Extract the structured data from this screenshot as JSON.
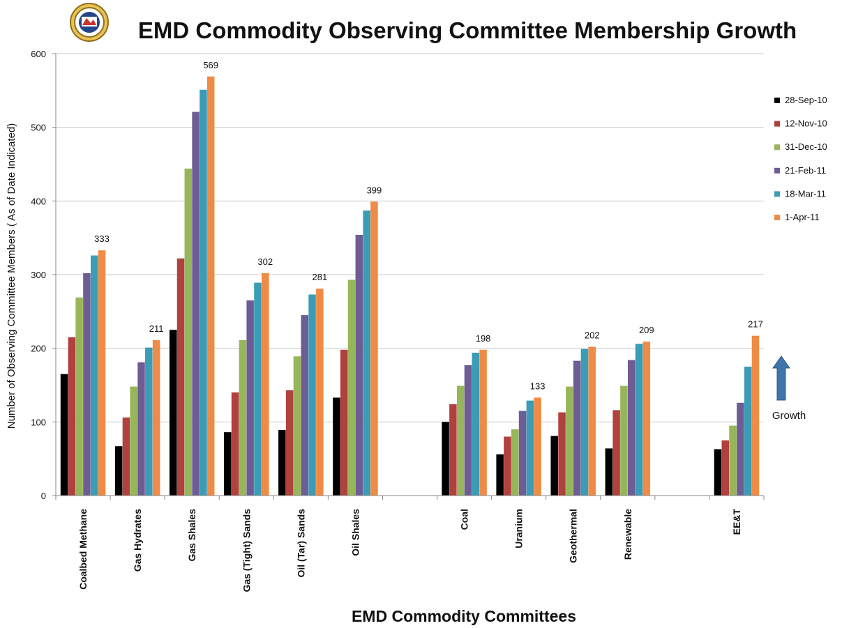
{
  "chart_data": {
    "type": "bar",
    "title": "EMD Commodity Observing Committee Membership Growth",
    "xlabel": "EMD Commodity Committees",
    "ylabel": "Number of Observing Committee Members  ( As of Date Indicated)",
    "ylim": [
      0,
      600
    ],
    "yticks": [
      0,
      100,
      200,
      300,
      400,
      500,
      600
    ],
    "grid": true,
    "legend_position": "right",
    "categories": [
      "Coalbed Methane",
      "Gas Hydrates",
      "Gas Shales",
      "Gas (Tight) Sands",
      "Oil (Tar) Sands",
      "Oil Shales",
      "",
      "Coal",
      "Uranium",
      "Geothermal",
      "Renewable",
      "",
      "EE&T"
    ],
    "series": [
      {
        "name": "28-Sep-10",
        "color": "#000000",
        "values": [
          165,
          67,
          225,
          86,
          89,
          133,
          null,
          100,
          56,
          81,
          64,
          null,
          63
        ]
      },
      {
        "name": "12-Nov-10",
        "color": "#b0413e",
        "values": [
          215,
          106,
          322,
          140,
          143,
          198,
          null,
          124,
          80,
          113,
          116,
          null,
          75
        ]
      },
      {
        "name": "31-Dec-10",
        "color": "#97b65a",
        "values": [
          269,
          148,
          444,
          211,
          189,
          293,
          null,
          149,
          90,
          148,
          149,
          null,
          95
        ]
      },
      {
        "name": "21-Feb-11",
        "color": "#6e5c95",
        "values": [
          302,
          181,
          521,
          265,
          245,
          354,
          null,
          177,
          115,
          183,
          184,
          null,
          126
        ]
      },
      {
        "name": "18-Mar-11",
        "color": "#3a9cb6",
        "values": [
          326,
          201,
          551,
          289,
          273,
          387,
          null,
          194,
          129,
          199,
          206,
          null,
          175
        ]
      },
      {
        "name": "1-Apr-11",
        "color": "#ef8b44",
        "values": [
          333,
          211,
          569,
          302,
          281,
          399,
          null,
          198,
          133,
          202,
          209,
          null,
          217
        ]
      }
    ],
    "data_labels": [
      "333",
      "211",
      "569",
      "302",
      "281",
      "399",
      "",
      "198",
      "133",
      "202",
      "209",
      "",
      "217"
    ],
    "annotation": {
      "text": "Growth",
      "icon": "up-arrow-icon",
      "color": "#3f74ad"
    },
    "logo": {
      "icon": "emd-seal-logo"
    }
  }
}
